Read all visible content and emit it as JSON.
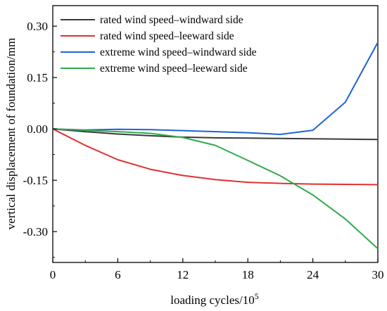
{
  "chart_data": {
    "type": "line",
    "xlabel": "loading cycles/10",
    "xlabel_sup": "5",
    "ylabel": "vertical displacement of foundation/mm",
    "xlim": [
      0,
      30
    ],
    "ylim": [
      -0.39,
      0.36
    ],
    "x_ticks": [
      0,
      6,
      12,
      18,
      24,
      30
    ],
    "x_tick_labels": [
      "0",
      "6",
      "12",
      "18",
      "24",
      "30"
    ],
    "y_ticks": [
      0.3,
      0.15,
      0.0,
      -0.15,
      -0.3
    ],
    "y_tick_labels": [
      "0.30",
      "0.15",
      "0.00",
      "-0.15",
      "-0.30"
    ],
    "grid": false,
    "legend_position": "top-left",
    "series": [
      {
        "name": "rated wind speed–windward side",
        "color": "#3a3a3a",
        "x": [
          0,
          3,
          6,
          9,
          12,
          15,
          18,
          21,
          24,
          27,
          30
        ],
        "y": [
          0,
          -0.008,
          -0.015,
          -0.02,
          -0.024,
          -0.026,
          -0.027,
          -0.028,
          -0.029,
          -0.03,
          -0.031
        ]
      },
      {
        "name": "rated wind speed–leeward side",
        "color": "#e03030",
        "x": [
          0,
          3,
          6,
          9,
          12,
          15,
          18,
          21,
          24,
          27,
          30
        ],
        "y": [
          0,
          -0.048,
          -0.09,
          -0.118,
          -0.136,
          -0.148,
          -0.156,
          -0.159,
          -0.161,
          -0.162,
          -0.163
        ]
      },
      {
        "name": "extreme wind speed–windward side",
        "color": "#1f63d6",
        "x": [
          0,
          3,
          6,
          9,
          12,
          15,
          18,
          21,
          24,
          27,
          30
        ],
        "y": [
          0,
          -0.003,
          -0.001,
          -0.002,
          -0.005,
          -0.008,
          -0.011,
          -0.016,
          -0.004,
          0.078,
          0.253
        ]
      },
      {
        "name": "extreme wind speed–leeward side",
        "color": "#2faa4e",
        "x": [
          0,
          3,
          6,
          9,
          12,
          15,
          18,
          21,
          24,
          27,
          30
        ],
        "y": [
          0,
          -0.004,
          -0.008,
          -0.013,
          -0.025,
          -0.048,
          -0.092,
          -0.137,
          -0.193,
          -0.263,
          -0.35
        ]
      }
    ]
  }
}
